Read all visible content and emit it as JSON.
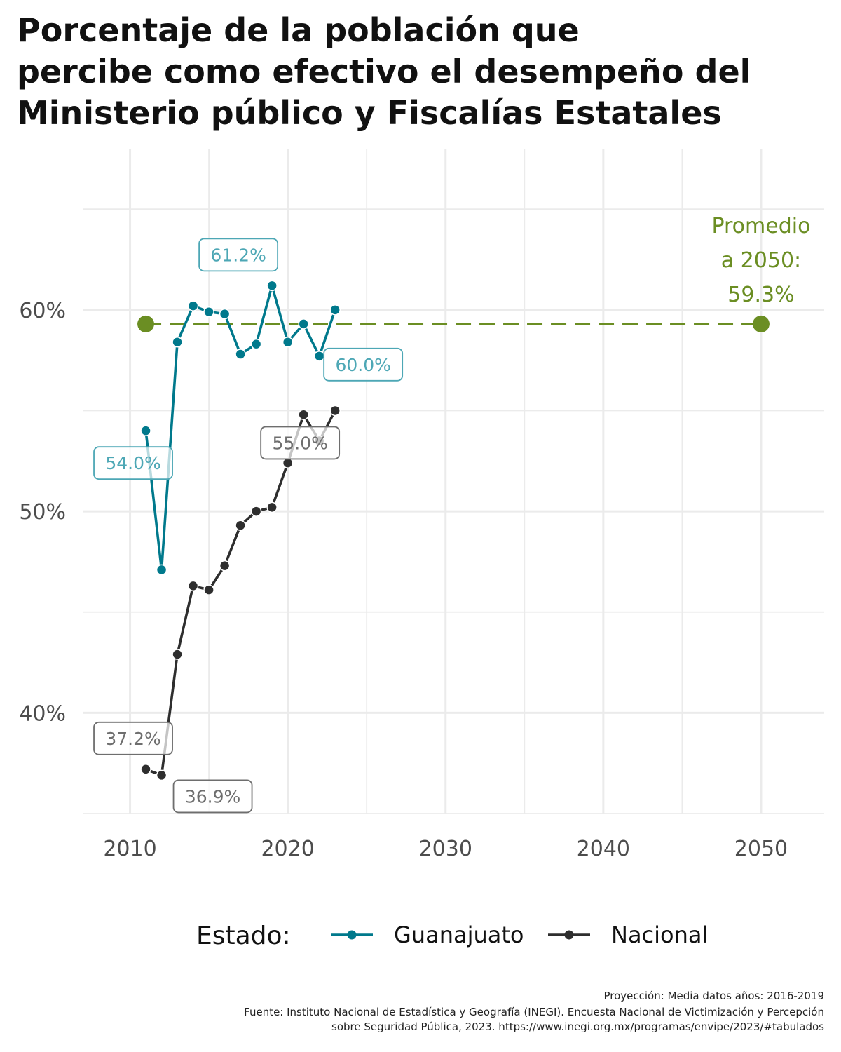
{
  "title_lines": [
    "Porcentaje de la población que",
    "percibe como efectivo el desempeño del",
    "Ministerio público y Fiscalías Estatales"
  ],
  "caption_lines": [
    "Proyección: Media datos años: 2016-2019",
    "Fuente: Instituto Nacional de Estadística y Geografía (INEGI). Encuesta Nacional de Victimización y Percepción",
    "sobre Seguridad Pública, 2023. https://www.inegi.org.mx/programas/envipe/2023/#tabulados"
  ],
  "chart_data": {
    "type": "line",
    "title": "Porcentaje de la población que percibe como efectivo el desempeño del Ministerio público y Fiscalías Estatales",
    "xlim": [
      2007,
      2054
    ],
    "ylim": [
      35,
      68
    ],
    "x_ticks": [
      2010,
      2020,
      2030,
      2040,
      2050
    ],
    "x_tick_labels": [
      "2010",
      "2020",
      "2030",
      "2040",
      "2050"
    ],
    "y_ticks": [
      40,
      50,
      60
    ],
    "y_tick_labels": [
      "40%",
      "50%",
      "60%"
    ],
    "grid": true,
    "legend": {
      "title": "Estado:",
      "position": "bottom",
      "entries": [
        "Guanajuato",
        "Nacional"
      ]
    },
    "series": [
      {
        "name": "Guanajuato",
        "color": "#00798c",
        "x": [
          2011,
          2012,
          2013,
          2014,
          2015,
          2016,
          2017,
          2018,
          2019,
          2020,
          2021,
          2022,
          2023
        ],
        "y": [
          54.0,
          47.1,
          58.4,
          60.2,
          59.9,
          59.8,
          57.8,
          58.3,
          61.2,
          58.4,
          59.3,
          57.7,
          60.0
        ]
      },
      {
        "name": "Nacional",
        "color": "#2e2e2e",
        "x": [
          2011,
          2012,
          2013,
          2014,
          2015,
          2016,
          2017,
          2018,
          2019,
          2020,
          2021,
          2022,
          2023
        ],
        "y": [
          37.2,
          36.9,
          42.9,
          46.3,
          46.1,
          47.3,
          49.3,
          50.0,
          50.2,
          52.4,
          54.8,
          53.5,
          55.0
        ]
      }
    ],
    "data_labels": [
      {
        "series": "Guanajuato",
        "x": 2011,
        "y": 54.0,
        "text": "54.0%"
      },
      {
        "series": "Guanajuato",
        "x": 2019,
        "y": 61.2,
        "text": "61.2%"
      },
      {
        "series": "Guanajuato",
        "x": 2023,
        "y": 60.0,
        "text": "60.0%"
      },
      {
        "series": "Nacional",
        "x": 2011,
        "y": 37.2,
        "text": "37.2%"
      },
      {
        "series": "Nacional",
        "x": 2012,
        "y": 36.9,
        "text": "36.9%"
      },
      {
        "series": "Nacional",
        "x": 2023,
        "y": 55.0,
        "text": "55.0%"
      }
    ],
    "projection": {
      "color": "#6b8e23",
      "x": [
        2011,
        2050
      ],
      "y": [
        59.3,
        59.3
      ],
      "annotation_lines": [
        "Promedio",
        "a 2050:",
        "59.3%"
      ]
    }
  }
}
